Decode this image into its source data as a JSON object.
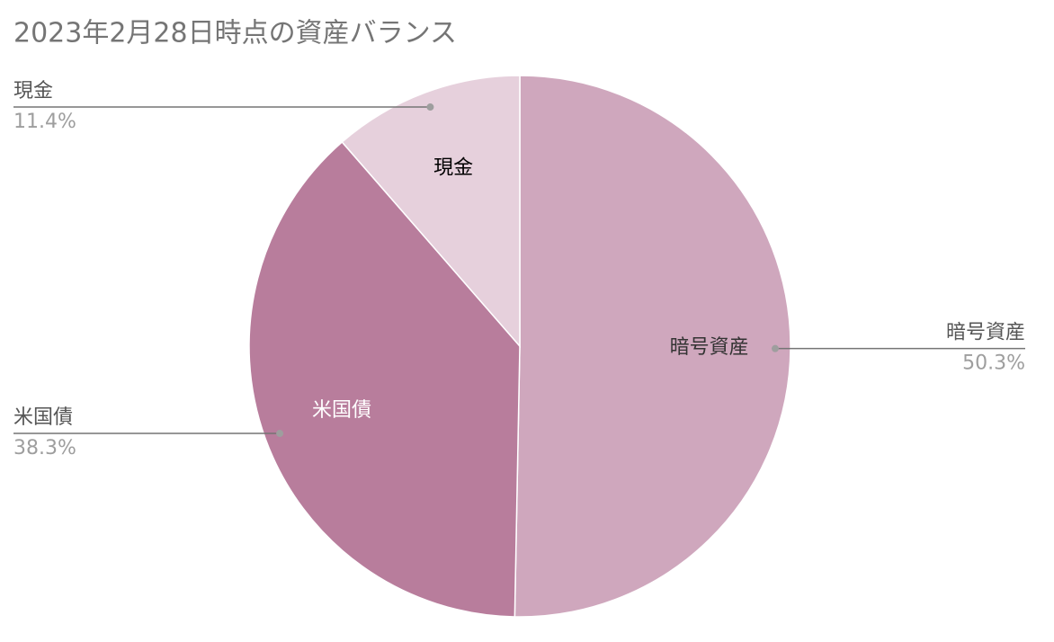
{
  "chart_data": {
    "type": "pie",
    "title": "2023年2月28日時点の資産バランス",
    "categories": [
      "暗号資産",
      "米国債",
      "現金"
    ],
    "values": [
      50.3,
      38.3,
      11.4
    ],
    "value_labels": [
      "50.3%",
      "38.3%",
      "11.4%"
    ],
    "colors": [
      "#cfa7bd",
      "#b87d9c",
      "#e6d0dc"
    ],
    "label_colors": [
      "#333333",
      "#ffffff",
      "#000000"
    ]
  }
}
